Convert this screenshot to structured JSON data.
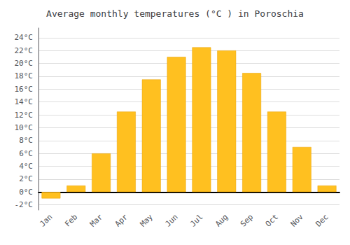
{
  "chart_data": {
    "type": "bar",
    "title": "Average monthly temperatures (°C ) in Poroschia",
    "categories": [
      "Jan",
      "Feb",
      "Mar",
      "Apr",
      "May",
      "Jun",
      "Jul",
      "Aug",
      "Sep",
      "Oct",
      "Nov",
      "Dec"
    ],
    "values": [
      -1.0,
      1.0,
      6.0,
      12.5,
      17.5,
      21.0,
      22.5,
      22.0,
      18.5,
      12.5,
      7.0,
      1.0
    ],
    "color": "#FFC020",
    "ylim": [
      -2.8,
      25.5
    ],
    "yticks": [
      {
        "value": -2,
        "label": "-2°C"
      },
      {
        "value": 0,
        "label": "0°C"
      },
      {
        "value": 2,
        "label": "2°C"
      },
      {
        "value": 4,
        "label": "4°C"
      },
      {
        "value": 6,
        "label": "6°C"
      },
      {
        "value": 8,
        "label": "8°C"
      },
      {
        "value": 10,
        "label": "10°C"
      },
      {
        "value": 12,
        "label": "12°C"
      },
      {
        "value": 14,
        "label": "14°C"
      },
      {
        "value": 16,
        "label": "16°C"
      },
      {
        "value": 18,
        "label": "18°C"
      },
      {
        "value": 20,
        "label": "20°C"
      },
      {
        "value": 22,
        "label": "22°C"
      },
      {
        "value": 24,
        "label": "24°C"
      }
    ],
    "grid": true
  }
}
